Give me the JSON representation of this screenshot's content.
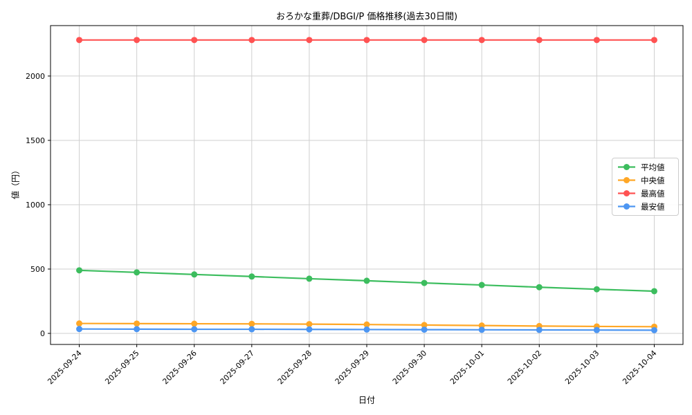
{
  "chart_data": {
    "type": "line",
    "title": "おろかな重葬/DBGI/P  価格推移(過去30日間)",
    "xlabel": "日付",
    "ylabel": "値（円）",
    "categories": [
      "2025-09-24",
      "2025-09-25",
      "2025-09-26",
      "2025-09-27",
      "2025-09-28",
      "2025-09-29",
      "2025-09-30",
      "2025-10-01",
      "2025-10-02",
      "2025-10-03",
      "2025-10-04"
    ],
    "yticks": [
      0,
      500,
      1000,
      1500,
      2000
    ],
    "ytick_labels": [
      "0",
      "500",
      "1000",
      "1500",
      "2000"
    ],
    "ylim": [
      -86,
      2392
    ],
    "xlim": [
      -0.5,
      10.5
    ],
    "grid": true,
    "grid_color": "#cfcfcf",
    "spine_color": "#000000",
    "legend_position": "center right",
    "series": [
      {
        "name": "平均値",
        "color": "#3cbd5e",
        "values": [
          490,
          474,
          458,
          442,
          425,
          409,
          392,
          376,
          359,
          343,
          328
        ]
      },
      {
        "name": "中央値",
        "color": "#ffa726",
        "values": [
          77,
          76,
          75,
          74,
          72,
          69,
          65,
          61,
          57,
          54,
          52
        ]
      },
      {
        "name": "最高値",
        "color": "#ff5252",
        "values": [
          2280,
          2280,
          2280,
          2280,
          2280,
          2280,
          2280,
          2280,
          2280,
          2280,
          2280
        ]
      },
      {
        "name": "最安値",
        "color": "#4d96f2",
        "values": [
          34,
          33,
          32,
          32,
          31,
          30,
          29,
          28,
          27,
          26,
          25
        ]
      }
    ]
  }
}
